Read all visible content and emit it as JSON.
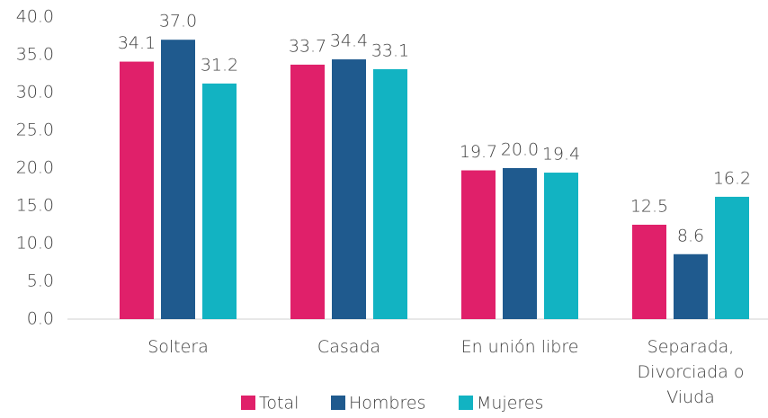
{
  "chart_data": {
    "type": "bar",
    "categories": [
      "Soltera",
      "Casada",
      "En unión libre",
      "Separada, Divorciada o Viuda"
    ],
    "series": [
      {
        "name": "Total",
        "color": "#e0206a",
        "values": [
          34.1,
          33.7,
          19.7,
          12.5
        ],
        "value_labels": [
          "34.1",
          "33.7",
          "19.7",
          "12.5"
        ]
      },
      {
        "name": "Hombres",
        "color": "#1f5a8e",
        "values": [
          37.0,
          34.4,
          20.0,
          8.6
        ],
        "value_labels": [
          "37.0",
          "34.4",
          "20.0",
          "8.6"
        ]
      },
      {
        "name": "Mujeres",
        "color": "#12b3c2",
        "values": [
          31.2,
          33.1,
          19.4,
          16.2
        ],
        "value_labels": [
          "31.2",
          "33.1",
          "19.4",
          "16.2"
        ]
      }
    ],
    "ylim": [
      0,
      40
    ],
    "yticks": [
      {
        "value": 0,
        "label": "0.0"
      },
      {
        "value": 5,
        "label": "5.0"
      },
      {
        "value": 10,
        "label": "10.0"
      },
      {
        "value": 15,
        "label": "15.0"
      },
      {
        "value": 20,
        "label": "20.0"
      },
      {
        "value": 25,
        "label": "25.0"
      },
      {
        "value": 30,
        "label": "30.0"
      },
      {
        "value": 35,
        "label": "35.0"
      },
      {
        "value": 40,
        "label": "40.0"
      }
    ],
    "legend": "bottom"
  }
}
